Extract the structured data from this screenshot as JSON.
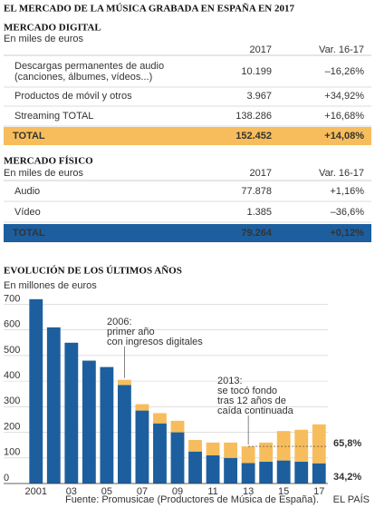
{
  "header": {
    "title": "EL MERCADO DE LA MÚSICA GRABADA EN ESPAÑA EN 2017"
  },
  "digital": {
    "title": "MERCADO DIGITAL",
    "subtitle": "En miles de euros",
    "columns": [
      "2017",
      "Var. 16-17"
    ],
    "rows": [
      {
        "label": [
          "Descargas permanentes de audio",
          "(canciones, álbumes, vídeos...)"
        ],
        "value": "10.199",
        "change": "–16,26%"
      },
      {
        "label": [
          "Productos de móvil y otros"
        ],
        "value": "3.967",
        "change": "+34,92%"
      },
      {
        "label": [
          "Streaming TOTAL"
        ],
        "value": "138.286",
        "change": "+16,68%"
      }
    ],
    "total": {
      "label": "TOTAL",
      "value": "152.452",
      "change": "+14,08%"
    }
  },
  "fisico": {
    "title": "MERCADO FÍSICO",
    "subtitle": "En miles de euros",
    "columns": [
      "2017",
      "Var. 16-17"
    ],
    "rows": [
      {
        "label": [
          "Audio"
        ],
        "value": "77.878",
        "change": "+1,16%"
      },
      {
        "label": [
          "Vídeo"
        ],
        "value": "1.385",
        "change": "–36,6%"
      }
    ],
    "total": {
      "label": "TOTAL",
      "value": "79.264",
      "change": "+0,12%"
    }
  },
  "chart_data": {
    "type": "bar",
    "stacked": true,
    "title": "EVOLUCIÓN DE LOS ÚLTIMOS AÑOS",
    "subtitle": "En millones de euros",
    "categories": [
      "2001",
      null,
      "03",
      null,
      "05",
      null,
      "07",
      null,
      "09",
      null,
      "11",
      null,
      "13",
      null,
      "15",
      null,
      "17"
    ],
    "series": [
      {
        "color": "#1d5f9e",
        "values": [
          720,
          610,
          550,
          480,
          455,
          385,
          285,
          235,
          200,
          125,
          110,
          100,
          80,
          85,
          90,
          85,
          79
        ]
      },
      {
        "color": "#f7bd5c",
        "values": [
          0,
          0,
          0,
          0,
          0,
          20,
          25,
          40,
          45,
          45,
          50,
          60,
          65,
          75,
          115,
          125,
          152
        ]
      }
    ],
    "ylim": [
      0,
      730
    ],
    "yticks": [
      0,
      100,
      200,
      300,
      400,
      500,
      600,
      700
    ],
    "grid": true,
    "annotations": [
      {
        "lines": [
          "2006:",
          "primer año",
          "con ingresos digitales"
        ]
      },
      {
        "lines": [
          "2013:",
          "se tocó fondo",
          "tras 12 años de",
          "caída continuada"
        ]
      }
    ],
    "share_labels": [
      "65,8%",
      "34,2%"
    ]
  },
  "footer": {
    "source": "Fuente: Promusicae (Productores de Música de España).",
    "credit": "EL PAÍS"
  }
}
